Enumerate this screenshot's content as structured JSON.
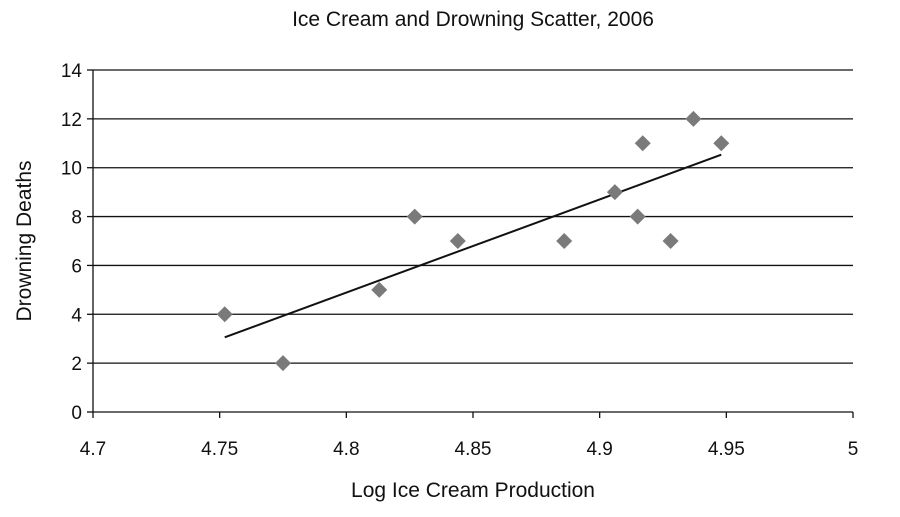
{
  "chart_data": {
    "type": "scatter",
    "title": "Ice Cream and Drowning Scatter, 2006",
    "xlabel": "Log Ice Cream Production",
    "ylabel": "Drowning Deaths",
    "xlim": [
      4.7,
      5
    ],
    "ylim": [
      0,
      14
    ],
    "x_ticks": [
      "4.7",
      "4.75",
      "4.8",
      "4.85",
      "4.9",
      "4.95",
      "5"
    ],
    "y_ticks": [
      "0",
      "2",
      "4",
      "6",
      "8",
      "10",
      "12",
      "14"
    ],
    "grid": "horizontal",
    "marker": "diamond",
    "marker_color": "#7a7a7a",
    "line_color": "#111111",
    "points": [
      {
        "x": 4.752,
        "y": 4
      },
      {
        "x": 4.775,
        "y": 2
      },
      {
        "x": 4.813,
        "y": 5
      },
      {
        "x": 4.827,
        "y": 8
      },
      {
        "x": 4.844,
        "y": 7
      },
      {
        "x": 4.886,
        "y": 7
      },
      {
        "x": 4.906,
        "y": 9
      },
      {
        "x": 4.915,
        "y": 8
      },
      {
        "x": 4.917,
        "y": 11
      },
      {
        "x": 4.928,
        "y": 7
      },
      {
        "x": 4.937,
        "y": 12
      },
      {
        "x": 4.948,
        "y": 11
      }
    ],
    "trendline": {
      "type": "linear",
      "x_range": [
        4.752,
        4.948
      ]
    }
  }
}
